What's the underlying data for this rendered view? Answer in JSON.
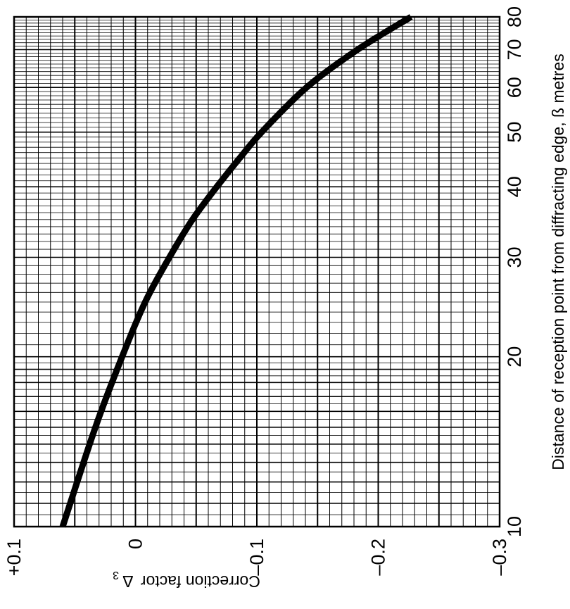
{
  "chart_data": {
    "type": "line",
    "orientation": "rotated-90-clockwise",
    "x_axis": {
      "label": "Distance of reception point from diffracting edge, ß metres",
      "scale": "log",
      "range": [
        10,
        80
      ],
      "tick_labels": [
        "10",
        "20",
        "30",
        "40",
        "50",
        "60",
        "70",
        "80"
      ],
      "position": "right"
    },
    "y_axis": {
      "label": "Correction factor",
      "symbol": "Δ",
      "subscript": "3",
      "scale": "linear",
      "range": [
        0.1,
        -0.3
      ],
      "tick_labels": [
        "+0.1",
        "0",
        "–0.1",
        "–0.2",
        "–0.3"
      ],
      "position": "bottom"
    },
    "grid": true,
    "series": [
      {
        "x": [
          10,
          15,
          20,
          25,
          30,
          35,
          40,
          45,
          50,
          60,
          70,
          80
        ],
        "y": [
          0.06,
          0.033,
          0.011,
          -0.008,
          -0.028,
          -0.047,
          -0.067,
          -0.086,
          -0.104,
          -0.141,
          -0.183,
          -0.227
        ]
      }
    ]
  }
}
